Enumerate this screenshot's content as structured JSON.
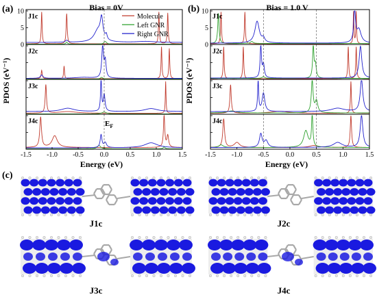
{
  "figure": {
    "panel_labels": [
      "(a)",
      "(b)",
      "(c)"
    ]
  },
  "chart_data": [
    {
      "type": "line",
      "panel": "(a)",
      "title": "Bias = 0V",
      "xlabel": "Energy (eV)",
      "ylabel": "PDOS (eV⁻¹)",
      "xlim": [
        -1.5,
        1.5
      ],
      "xticks": [
        "-1.5",
        "-1.0",
        "-0.5",
        "0.0",
        "0.5",
        "1.0",
        "1.5"
      ],
      "ylim": [
        0,
        10
      ],
      "yticks_shown": [
        "10",
        "5",
        "0"
      ],
      "fermi_label": "E",
      "fermi_label_sub": "F",
      "vlines_dashed_x": [
        0.0
      ],
      "legend": {
        "placement": "top-right",
        "entries": [
          "Molecule",
          "Left GNR",
          "Right GNR"
        ]
      },
      "colors": {
        "Molecule": "#c0392b",
        "Left GNR": "#2ca02c",
        "Right GNR": "#1f1fcc"
      },
      "subplots": [
        {
          "label": "J1c",
          "series": [
            {
              "name": "Molecule",
              "peaks": [
                [
                  -1.2,
                  9.5,
                  0.01
                ],
                [
                  -0.72,
                  9.0,
                  0.012
                ],
                [
                  1.05,
                  9.5,
                  0.01
                ],
                [
                  1.22,
                  9.2,
                  0.01
                ]
              ],
              "base": 0.2
            },
            {
              "name": "Left GNR",
              "peaks": [
                [
                  -0.72,
                  0.6,
                  0.02
                ],
                [
                  0.02,
                  0.8,
                  0.03
                ]
              ],
              "base": 0.1
            },
            {
              "name": "Right GNR",
              "peaks": [
                [
                  -0.12,
                  3.5,
                  0.09
                ],
                [
                  -0.05,
                  6.0,
                  0.03
                ],
                [
                  0.04,
                  1.5,
                  0.02
                ],
                [
                  -0.72,
                  0.6,
                  0.03
                ],
                [
                  0.8,
                  0.3,
                  0.2
                ]
              ],
              "base": 0.6
            }
          ]
        },
        {
          "label": "J2c",
          "series": [
            {
              "name": "Molecule",
              "peaks": [
                [
                  -1.2,
                  2.5,
                  0.012
                ],
                [
                  -0.77,
                  3.8,
                  0.01
                ],
                [
                  1.1,
                  9.5,
                  0.01
                ],
                [
                  1.25,
                  9.0,
                  0.01
                ]
              ],
              "base": 0.2
            },
            {
              "name": "Left GNR",
              "peaks": [
                [
                  -0.05,
                  0.5,
                  0.03
                ]
              ],
              "base": 0.1
            },
            {
              "name": "Right GNR",
              "peaks": [
                [
                  -0.03,
                  9.5,
                  0.02
                ],
                [
                  0.02,
                  5.0,
                  0.02
                ],
                [
                  -1.2,
                  1.0,
                  0.03
                ],
                [
                  -0.4,
                  0.3,
                  0.2
                ]
              ],
              "base": 0.3
            }
          ]
        },
        {
          "label": "J3c",
          "series": [
            {
              "name": "Molecule",
              "peaks": [
                [
                  -1.12,
                  8.5,
                  0.015
                ],
                [
                  1.18,
                  9.5,
                  0.008
                ],
                [
                  -0.7,
                  0.5,
                  0.2
                ]
              ],
              "base": 0.3
            },
            {
              "name": "Left GNR",
              "peaks": [
                [
                  0.0,
                  0.6,
                  0.05
                ]
              ],
              "base": 0.1
            },
            {
              "name": "Right GNR",
              "peaks": [
                [
                  -0.06,
                  9.5,
                  0.012
                ],
                [
                  0.0,
                  5.0,
                  0.02
                ],
                [
                  -0.7,
                  1.0,
                  0.15
                ],
                [
                  0.9,
                  0.9,
                  0.15
                ]
              ],
              "base": 0.8
            }
          ]
        },
        {
          "label": "J4c",
          "series": [
            {
              "name": "Molecule",
              "peaks": [
                [
                  -1.22,
                  9.0,
                  0.02
                ],
                [
                  -0.95,
                  3.5,
                  0.06
                ],
                [
                  1.15,
                  9.5,
                  0.015
                ],
                [
                  1.22,
                  3.5,
                  0.02
                ]
              ],
              "base": 0.5
            },
            {
              "name": "Left GNR",
              "peaks": [
                [
                  -0.1,
                  1.0,
                  0.04
                ],
                [
                  1.15,
                  0.6,
                  0.02
                ]
              ],
              "base": 0.1
            },
            {
              "name": "Right GNR",
              "peaks": [
                [
                  -0.06,
                  3.8,
                  0.02
                ],
                [
                  0.02,
                  1.5,
                  0.03
                ],
                [
                  0.9,
                  1.5,
                  0.15
                ]
              ],
              "base": 0.4
            }
          ]
        }
      ]
    },
    {
      "type": "line",
      "panel": "(b)",
      "title": "Bias = 1.0 V",
      "xlabel": "Energy (eV)",
      "ylabel": "PDOS (eV⁻¹)",
      "xlim": [
        -1.5,
        1.5
      ],
      "xticks": [
        "-1.5",
        "-1.0",
        "-0.5",
        "0.0",
        "0.5",
        "1.0",
        "1.5"
      ],
      "ylim": [
        0,
        10
      ],
      "yticks_shown": [
        "10",
        "5",
        "0"
      ],
      "vlines_dashed_x": [
        -0.5,
        0.5
      ],
      "colors": {
        "Molecule": "#c0392b",
        "Left GNR": "#2ca02c",
        "Right GNR": "#1f1fcc"
      },
      "subplots": [
        {
          "label": "J1c",
          "series": [
            {
              "name": "Molecule",
              "peaks": [
                [
                  -1.3,
                  9.5,
                  0.01
                ],
                [
                  -0.85,
                  9.5,
                  0.01
                ],
                [
                  1.2,
                  9.5,
                  0.008
                ],
                [
                  1.25,
                  9.5,
                  0.008
                ]
              ],
              "base": 0.2
            },
            {
              "name": "Left GNR",
              "peaks": [
                [
                  -1.35,
                  9.0,
                  0.015
                ],
                [
                  -0.72,
                  0.6,
                  0.03
                ]
              ],
              "base": 0.3
            },
            {
              "name": "Right GNR",
              "peaks": [
                [
                  -0.62,
                  6.5,
                  0.05
                ],
                [
                  -0.5,
                  1.2,
                  0.03
                ],
                [
                  1.22,
                  9.5,
                  0.02
                ],
                [
                  1.3,
                  4.0,
                  0.05
                ]
              ],
              "base": 0.4
            }
          ]
        },
        {
          "label": "J2c",
          "series": [
            {
              "name": "Molecule",
              "peaks": [
                [
                  -1.25,
                  9.5,
                  0.01
                ],
                [
                  -0.88,
                  9.5,
                  0.01
                ],
                [
                  1.1,
                  9.5,
                  0.01
                ],
                [
                  1.25,
                  9.5,
                  0.01
                ]
              ],
              "base": 0.2
            },
            {
              "name": "Left GNR",
              "peaks": [
                [
                  0.44,
                  9.5,
                  0.015
                ],
                [
                  0.48,
                  4.0,
                  0.02
                ],
                [
                  -0.5,
                  0.5,
                  0.03
                ]
              ],
              "base": 0.3
            },
            {
              "name": "Right GNR",
              "peaks": [
                [
                  -0.55,
                  9.5,
                  0.015
                ],
                [
                  -0.5,
                  4.0,
                  0.02
                ],
                [
                  1.33,
                  9.5,
                  0.03
                ]
              ],
              "base": 0.4
            }
          ]
        },
        {
          "label": "J3c",
          "series": [
            {
              "name": "Molecule",
              "peaks": [
                [
                  -1.12,
                  8.5,
                  0.015
                ],
                [
                  1.15,
                  9.5,
                  0.01
                ],
                [
                  -0.2,
                  0.6,
                  0.2
                ]
              ],
              "base": 0.3
            },
            {
              "name": "Left GNR",
              "peaks": [
                [
                  0.42,
                  9.5,
                  0.02
                ],
                [
                  0.5,
                  3.5,
                  0.03
                ],
                [
                  -1.1,
                  0.6,
                  0.1
                ]
              ],
              "base": 0.4
            },
            {
              "name": "Right GNR",
              "peaks": [
                [
                  -0.6,
                  9.0,
                  0.012
                ],
                [
                  -0.5,
                  5.5,
                  0.03
                ],
                [
                  1.35,
                  9.5,
                  0.03
                ],
                [
                  0.9,
                  1.0,
                  0.15
                ]
              ],
              "base": 0.8
            }
          ]
        },
        {
          "label": "J4c",
          "series": [
            {
              "name": "Molecule",
              "peaks": [
                [
                  -1.25,
                  8.5,
                  0.02
                ],
                [
                  -1.0,
                  1.5,
                  0.06
                ],
                [
                  1.15,
                  9.5,
                  0.015
                ],
                [
                  0.45,
                  0.6,
                  0.1
                ]
              ],
              "base": 0.5
            },
            {
              "name": "Left GNR",
              "peaks": [
                [
                  0.3,
                  5.0,
                  0.05
                ],
                [
                  0.42,
                  9.5,
                  0.015
                ],
                [
                  -1.3,
                  0.8,
                  0.05
                ]
              ],
              "base": 0.5
            },
            {
              "name": "Right GNR",
              "peaks": [
                [
                  -0.55,
                  4.0,
                  0.03
                ],
                [
                  -0.45,
                  2.0,
                  0.04
                ],
                [
                  1.35,
                  9.5,
                  0.03
                ],
                [
                  0.9,
                  1.5,
                  0.1
                ]
              ],
              "base": 0.5
            }
          ]
        }
      ]
    }
  ],
  "structures": {
    "panel": "(c)",
    "items": [
      {
        "label": "J1c",
        "density_style": "dotted"
      },
      {
        "label": "J2c",
        "density_style": "dotted"
      },
      {
        "label": "J3c",
        "density_style": "lobes"
      },
      {
        "label": "J4c",
        "density_style": "lobes"
      }
    ],
    "colors": {
      "density": "#1a1ae0",
      "bond": "#a8a8a8",
      "hydrogen": "#e8e8e8"
    }
  }
}
